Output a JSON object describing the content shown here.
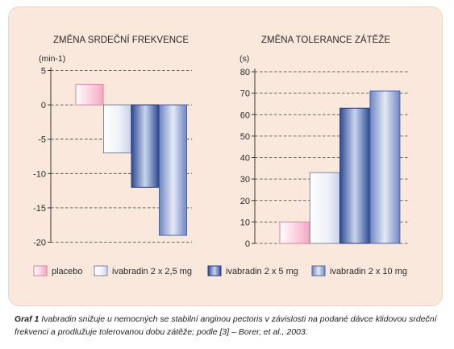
{
  "chart_data": [
    {
      "type": "bar",
      "title": "ZMĚNA SRDEČNÍ FREKVENCE",
      "ylabel": "(min-1)",
      "categories": [
        "placebo",
        "ivabradin 2 x 2,5 mg",
        "ivabradin 2 x 5 mg",
        "ivabradin 2 x 10 mg"
      ],
      "values": [
        3,
        -7,
        -12,
        -19
      ],
      "ylim": [
        -20,
        5
      ],
      "yticks": [
        5,
        0,
        -5,
        -10,
        -15,
        -20
      ],
      "ytick_labels": [
        "5",
        "0",
        "-5",
        "-10",
        "-15",
        "-20"
      ],
      "grid": "dashed horizontal"
    },
    {
      "type": "bar",
      "title": "ZMĚNA TOLERANCE ZÁTĚŽE",
      "ylabel": "(s)",
      "categories": [
        "placebo",
        "ivabradin 2 x 2,5 mg",
        "ivabradin 2 x 5 mg",
        "ivabradin 2 x 10 mg"
      ],
      "values": [
        10,
        33,
        63,
        71
      ],
      "ylim": [
        0,
        80
      ],
      "yticks": [
        0,
        10,
        20,
        30,
        40,
        50,
        60,
        70,
        80
      ],
      "ytick_labels": [
        "0",
        "10",
        "20",
        "30",
        "40",
        "50",
        "60",
        "70",
        "80"
      ],
      "grid": "dashed horizontal"
    }
  ],
  "legend": {
    "placement": "bottom",
    "items": [
      {
        "label": "placebo",
        "color": "#f7c6d6"
      },
      {
        "label": "ivabradin 2 x 2,5 mg",
        "color": "#e8ecf6"
      },
      {
        "label": "ivabradin 2 x 5 mg",
        "color": "#4e69ad"
      },
      {
        "label": "ivabradin 2 x 10 mg",
        "color": "#8fa4d4"
      }
    ]
  },
  "caption": {
    "label": "Graf 1",
    "text": "Ivabradin snižuje u nemocných se stabilní anginou pectoris v závislosti na podané dávce klidovou srdeční frekvenci a prodlužuje tolerovanou dobu zátěže; podle [3] – Borer, et al., 2003."
  }
}
